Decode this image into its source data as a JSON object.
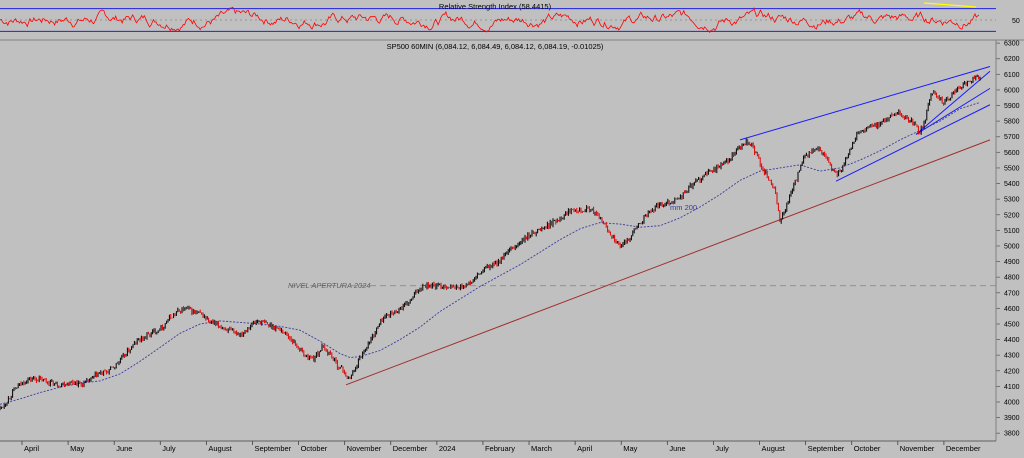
{
  "chart_data": [
    {
      "type": "line",
      "title": "Relative Strength Index (58.4415)",
      "ylim": [
        20,
        80
      ],
      "yticks": [
        {
          "value": 50,
          "label": "50"
        }
      ],
      "levels": [
        30,
        70
      ],
      "series": [
        {
          "color": "#ff0000"
        }
      ],
      "grid": false
    },
    {
      "type": "candlestick",
      "title": "SP500 60MIN (6,084.12, 6,084.49, 6,084.12, 6,084.19, -0.01025)",
      "ylim": [
        3750,
        6320
      ],
      "yticks": [
        3800,
        3900,
        4000,
        4100,
        4200,
        4300,
        4400,
        4500,
        4600,
        4700,
        4800,
        4900,
        5000,
        5100,
        5200,
        5300,
        5400,
        5500,
        5600,
        5700,
        5800,
        5900,
        6000,
        6100,
        6200,
        6300
      ],
      "xticks": [
        "April",
        "May",
        "June",
        "July",
        "August",
        "September",
        "October",
        "November",
        "December",
        "2024",
        "February",
        "March",
        "April",
        "May",
        "June",
        "July",
        "August",
        "September",
        "October",
        "November",
        "December"
      ],
      "close_path": [
        [
          0,
          3960
        ],
        [
          6,
          3995
        ],
        [
          12,
          4060
        ],
        [
          18,
          4100
        ],
        [
          26,
          4140
        ],
        [
          34,
          4150
        ],
        [
          42,
          4140
        ],
        [
          50,
          4125
        ],
        [
          58,
          4110
        ],
        [
          66,
          4120
        ],
        [
          74,
          4130
        ],
        [
          82,
          4110
        ],
        [
          90,
          4140
        ],
        [
          98,
          4180
        ],
        [
          106,
          4190
        ],
        [
          114,
          4225
        ],
        [
          122,
          4280
        ],
        [
          130,
          4340
        ],
        [
          138,
          4395
        ],
        [
          146,
          4420
        ],
        [
          154,
          4450
        ],
        [
          162,
          4480
        ],
        [
          170,
          4540
        ],
        [
          178,
          4580
        ],
        [
          186,
          4600
        ],
        [
          194,
          4575
        ],
        [
          202,
          4560
        ],
        [
          210,
          4510
        ],
        [
          218,
          4490
        ],
        [
          226,
          4470
        ],
        [
          234,
          4440
        ],
        [
          242,
          4440
        ],
        [
          250,
          4490
        ],
        [
          258,
          4520
        ],
        [
          266,
          4500
        ],
        [
          274,
          4480
        ],
        [
          282,
          4460
        ],
        [
          290,
          4410
        ],
        [
          298,
          4350
        ],
        [
          306,
          4290
        ],
        [
          314,
          4280
        ],
        [
          322,
          4350
        ],
        [
          330,
          4310
        ],
        [
          338,
          4230
        ],
        [
          344,
          4200
        ],
        [
          348,
          4140
        ],
        [
          353,
          4190
        ],
        [
          358,
          4260
        ],
        [
          364,
          4330
        ],
        [
          370,
          4390
        ],
        [
          376,
          4460
        ],
        [
          382,
          4530
        ],
        [
          388,
          4560
        ],
        [
          394,
          4570
        ],
        [
          400,
          4600
        ],
        [
          406,
          4620
        ],
        [
          412,
          4660
        ],
        [
          418,
          4720
        ],
        [
          424,
          4750
        ],
        [
          430,
          4750
        ],
        [
          438,
          4740
        ],
        [
          446,
          4745
        ],
        [
          454,
          4730
        ],
        [
          462,
          4740
        ],
        [
          470,
          4760
        ],
        [
          478,
          4810
        ],
        [
          486,
          4860
        ],
        [
          494,
          4880
        ],
        [
          502,
          4920
        ],
        [
          510,
          4970
        ],
        [
          518,
          5010
        ],
        [
          526,
          5050
        ],
        [
          534,
          5090
        ],
        [
          542,
          5110
        ],
        [
          550,
          5140
        ],
        [
          558,
          5170
        ],
        [
          566,
          5210
        ],
        [
          574,
          5245
        ],
        [
          582,
          5230
        ],
        [
          590,
          5240
        ],
        [
          596,
          5200
        ],
        [
          602,
          5160
        ],
        [
          608,
          5100
        ],
        [
          614,
          5050
        ],
        [
          620,
          4990
        ],
        [
          628,
          5040
        ],
        [
          634,
          5100
        ],
        [
          642,
          5160
        ],
        [
          650,
          5220
        ],
        [
          658,
          5260
        ],
        [
          666,
          5280
        ],
        [
          674,
          5290
        ],
        [
          682,
          5320
        ],
        [
          690,
          5380
        ],
        [
          698,
          5420
        ],
        [
          706,
          5460
        ],
        [
          714,
          5490
        ],
        [
          722,
          5520
        ],
        [
          730,
          5560
        ],
        [
          738,
          5620
        ],
        [
          746,
          5660
        ],
        [
          752,
          5640
        ],
        [
          758,
          5560
        ],
        [
          764,
          5480
        ],
        [
          770,
          5420
        ],
        [
          776,
          5330
        ],
        [
          780,
          5150
        ],
        [
          786,
          5250
        ],
        [
          792,
          5350
        ],
        [
          798,
          5460
        ],
        [
          804,
          5560
        ],
        [
          810,
          5600
        ],
        [
          818,
          5620
        ],
        [
          826,
          5580
        ],
        [
          834,
          5460
        ],
        [
          840,
          5470
        ],
        [
          846,
          5560
        ],
        [
          852,
          5660
        ],
        [
          858,
          5720
        ],
        [
          866,
          5750
        ],
        [
          874,
          5770
        ],
        [
          882,
          5790
        ],
        [
          890,
          5830
        ],
        [
          898,
          5860
        ],
        [
          906,
          5820
        ],
        [
          914,
          5790
        ],
        [
          920,
          5720
        ],
        [
          926,
          5830
        ],
        [
          932,
          5990
        ],
        [
          938,
          5960
        ],
        [
          944,
          5920
        ],
        [
          950,
          5950
        ],
        [
          958,
          6010
        ],
        [
          964,
          6040
        ],
        [
          970,
          6060
        ],
        [
          976,
          6080
        ],
        [
          980,
          6084
        ]
      ],
      "ma200": {
        "label": "mm 200",
        "color": "#3a3aa0",
        "points": [
          [
            0,
            3985
          ],
          [
            20,
            4020
          ],
          [
            40,
            4060
          ],
          [
            60,
            4095
          ],
          [
            80,
            4120
          ],
          [
            100,
            4135
          ],
          [
            120,
            4180
          ],
          [
            140,
            4260
          ],
          [
            160,
            4350
          ],
          [
            180,
            4440
          ],
          [
            200,
            4500
          ],
          [
            220,
            4520
          ],
          [
            240,
            4510
          ],
          [
            260,
            4500
          ],
          [
            280,
            4485
          ],
          [
            300,
            4460
          ],
          [
            320,
            4390
          ],
          [
            340,
            4310
          ],
          [
            350,
            4285
          ],
          [
            360,
            4290
          ],
          [
            380,
            4330
          ],
          [
            400,
            4400
          ],
          [
            420,
            4480
          ],
          [
            440,
            4580
          ],
          [
            460,
            4660
          ],
          [
            480,
            4740
          ],
          [
            500,
            4810
          ],
          [
            520,
            4880
          ],
          [
            540,
            4960
          ],
          [
            560,
            5040
          ],
          [
            580,
            5110
          ],
          [
            600,
            5150
          ],
          [
            620,
            5140
          ],
          [
            640,
            5120
          ],
          [
            660,
            5130
          ],
          [
            680,
            5180
          ],
          [
            700,
            5250
          ],
          [
            720,
            5330
          ],
          [
            740,
            5420
          ],
          [
            760,
            5480
          ],
          [
            780,
            5500
          ],
          [
            800,
            5520
          ],
          [
            820,
            5480
          ],
          [
            840,
            5500
          ],
          [
            860,
            5550
          ],
          [
            880,
            5610
          ],
          [
            900,
            5680
          ],
          [
            920,
            5740
          ],
          [
            940,
            5800
          ],
          [
            960,
            5880
          ],
          [
            980,
            5920
          ]
        ]
      },
      "trendlines": [
        {
          "color": "#a03030",
          "points": [
            [
              346,
              4110
            ],
            [
              990,
              5680
            ]
          ]
        },
        {
          "color": "#1a1aff",
          "points": [
            [
              740,
              5680
            ],
            [
              990,
              6150
            ]
          ]
        },
        {
          "color": "#1a1aff",
          "points": [
            [
              836,
              5415
            ],
            [
              990,
              5905
            ]
          ]
        },
        {
          "color": "#1a1aff",
          "points": [
            [
              916,
              5715
            ],
            [
              990,
              6120
            ]
          ]
        },
        {
          "color": "#1a1aff",
          "points": [
            [
              916,
              5715
            ],
            [
              990,
              6010
            ]
          ]
        }
      ],
      "reference_level": {
        "label": "NIVEL APERTURA 2024",
        "value": 4745
      },
      "grid": false
    }
  ]
}
